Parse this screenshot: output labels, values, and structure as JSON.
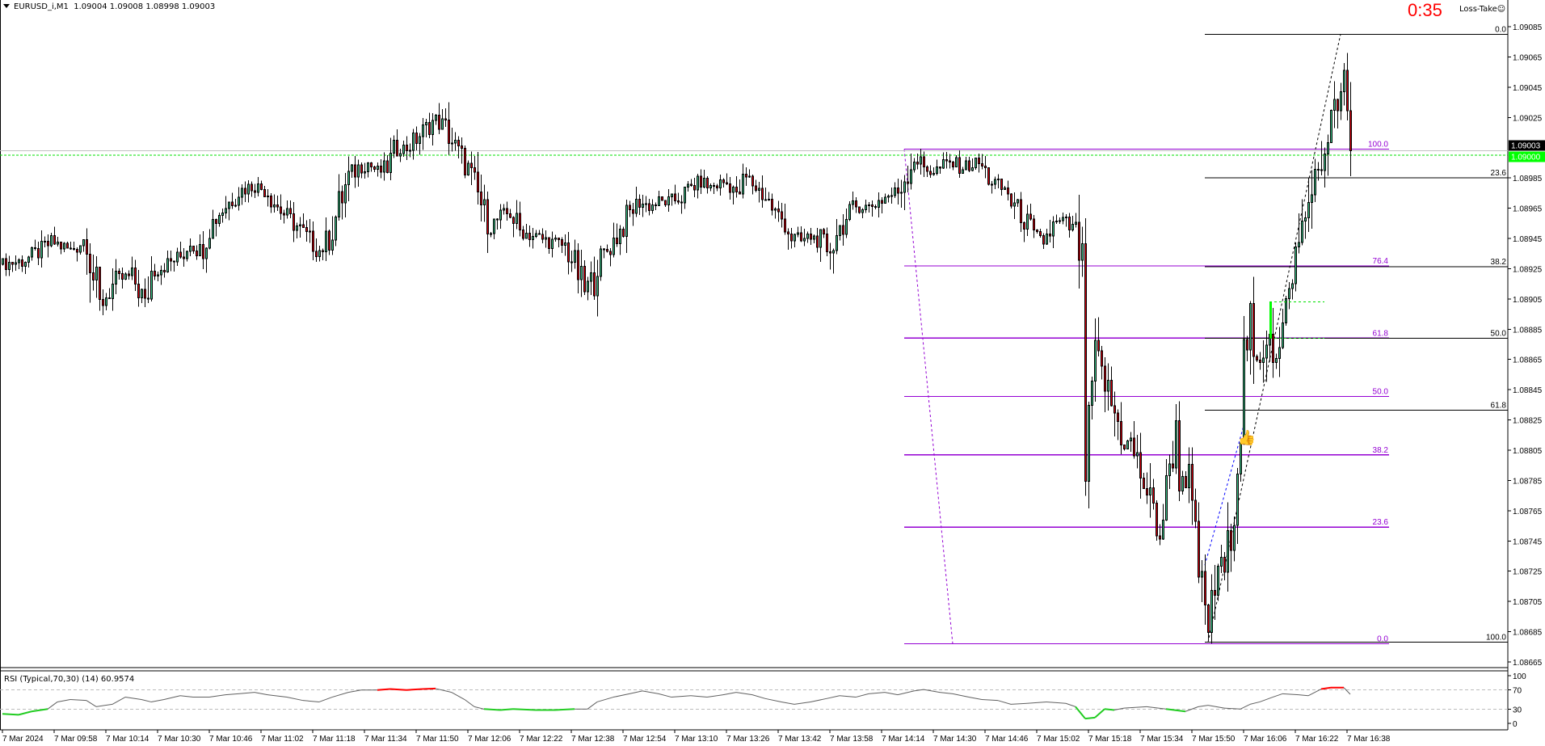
{
  "header": {
    "symbol": "EURUSD_i,M1",
    "ohlc": "1.09004 1.09008 1.08998 1.09003"
  },
  "widget": {
    "loss_take": "Loss-Take",
    "smiley_icon": "smiley-icon",
    "countdown": "0:35"
  },
  "rsi_label": "RSI (Typical,70,30) (14) 60.9574",
  "colors": {
    "bull": "#3cc68a",
    "bear": "#d9000d",
    "fib_purple": "#9400d3",
    "fib_black": "#000000",
    "bid_line": "#c0c0c0",
    "ask_line": "#00e000",
    "rsi_line": "#606060",
    "rsi_overbought": "#ff0000",
    "rsi_oversold": "#22cc22"
  },
  "chart_data": {
    "type": "candlestick",
    "price_ticks": [
      "1.09085",
      "1.09065",
      "1.09045",
      "1.09025",
      "1.08985",
      "1.08965",
      "1.08945",
      "1.08925",
      "1.08905",
      "1.08885",
      "1.08865",
      "1.08845",
      "1.08825",
      "1.08805",
      "1.08785",
      "1.08765",
      "1.08745",
      "1.08725",
      "1.08705",
      "1.08685",
      "1.08665"
    ],
    "price_range": [
      1.08655,
      1.091
    ],
    "time_labels": [
      "7 Mar 2024",
      "7 Mar 09:58",
      "7 Mar 10:14",
      "7 Mar 10:30",
      "7 Mar 10:46",
      "7 Mar 11:02",
      "7 Mar 11:18",
      "7 Mar 11:34",
      "7 Mar 11:50",
      "7 Mar 12:06",
      "7 Mar 12:22",
      "7 Mar 12:38",
      "7 Mar 12:54",
      "7 Mar 13:10",
      "7 Mar 13:26",
      "7 Mar 13:42",
      "7 Mar 13:58",
      "7 Mar 14:14",
      "7 Mar 14:30",
      "7 Mar 14:46",
      "7 Mar 15:02",
      "7 Mar 15:18",
      "7 Mar 15:34",
      "7 Mar 15:50",
      "7 Mar 16:06",
      "7 Mar 16:22",
      "7 Mar 16:38"
    ],
    "first_bar_time": "09:42",
    "bid": {
      "label": "1.09003",
      "price": 1.09003
    },
    "ask": {
      "label": "1.09000",
      "price": 1.09
    },
    "closes": [
      [
        "09:42",
        1.08928
      ],
      [
        "09:48",
        1.0893
      ],
      [
        "09:54",
        1.08937
      ],
      [
        "09:57",
        1.08943
      ],
      [
        "10:03",
        1.08937
      ],
      [
        "10:08",
        1.08946
      ],
      [
        "10:10",
        1.0892
      ],
      [
        "10:12",
        1.08901
      ],
      [
        "10:14",
        1.08907
      ],
      [
        "10:17",
        1.08917
      ],
      [
        "10:22",
        1.0892
      ],
      [
        "10:25",
        1.08907
      ],
      [
        "10:26",
        1.08901
      ],
      [
        "10:28",
        1.08923
      ],
      [
        "10:32",
        1.08927
      ],
      [
        "10:37",
        1.08933
      ],
      [
        "10:40",
        1.08943
      ],
      [
        "10:43",
        1.08937
      ],
      [
        "10:46",
        1.08953
      ],
      [
        "10:49",
        1.08962
      ],
      [
        "10:52",
        1.08969
      ],
      [
        "10:55",
        1.08976
      ],
      [
        "10:58",
        1.08979
      ],
      [
        "11:01",
        1.08979
      ],
      [
        "11:04",
        1.08976
      ],
      [
        "11:07",
        1.08966
      ],
      [
        "11:10",
        1.08959
      ],
      [
        "11:13",
        1.08953
      ],
      [
        "11:16",
        1.08946
      ],
      [
        "11:20",
        1.08937
      ],
      [
        "11:23",
        1.08946
      ],
      [
        "11:26",
        1.08966
      ],
      [
        "11:29",
        1.08985
      ],
      [
        "11:32",
        1.08992
      ],
      [
        "11:35",
        1.08995
      ],
      [
        "11:38",
        1.08989
      ],
      [
        "11:41",
        1.08992
      ],
      [
        "11:44",
        1.09005
      ],
      [
        "11:47",
        1.09005
      ],
      [
        "11:50",
        1.09011
      ],
      [
        "11:53",
        1.09018
      ],
      [
        "11:56",
        1.09024
      ],
      [
        "11:59",
        1.09018
      ],
      [
        "12:02",
        1.09005
      ],
      [
        "12:05",
        1.08995
      ],
      [
        "12:08",
        1.08979
      ],
      [
        "12:11",
        1.08962
      ],
      [
        "12:13",
        1.08953
      ],
      [
        "12:16",
        1.08959
      ],
      [
        "12:19",
        1.08962
      ],
      [
        "12:22",
        1.0895
      ],
      [
        "12:27",
        1.08946
      ],
      [
        "12:31",
        1.08943
      ],
      [
        "12:36",
        1.0894
      ],
      [
        "12:39",
        1.08927
      ],
      [
        "12:42",
        1.0891
      ],
      [
        "12:45",
        1.0892
      ],
      [
        "12:46",
        1.0893
      ],
      [
        "12:49",
        1.08937
      ],
      [
        "12:53",
        1.0895
      ],
      [
        "12:56",
        1.08962
      ],
      [
        "12:59",
        1.08969
      ],
      [
        "13:02",
        1.08966
      ],
      [
        "13:05",
        1.08969
      ],
      [
        "13:08",
        1.08969
      ],
      [
        "13:12",
        1.08972
      ],
      [
        "13:15",
        1.08979
      ],
      [
        "13:18",
        1.08982
      ],
      [
        "13:21",
        1.08979
      ],
      [
        "13:25",
        1.08982
      ],
      [
        "13:28",
        1.08979
      ],
      [
        "13:29",
        1.08972
      ],
      [
        "13:32",
        1.08985
      ],
      [
        "13:35",
        1.08979
      ],
      [
        "13:38",
        1.08972
      ],
      [
        "13:41",
        1.08962
      ],
      [
        "13:44",
        1.08956
      ],
      [
        "13:46",
        1.08946
      ],
      [
        "13:49",
        1.08943
      ],
      [
        "13:52",
        1.08946
      ],
      [
        "13:55",
        1.08943
      ],
      [
        "13:57",
        1.08933
      ],
      [
        "14:00",
        1.0895
      ],
      [
        "14:03",
        1.08956
      ],
      [
        "14:06",
        1.08966
      ],
      [
        "14:10",
        1.08966
      ],
      [
        "14:15",
        1.08972
      ],
      [
        "14:19",
        1.08976
      ],
      [
        "14:22",
        1.08989
      ],
      [
        "14:24",
        1.08998
      ],
      [
        "14:27",
        1.08992
      ],
      [
        "14:30",
        1.08989
      ],
      [
        "14:35",
        1.08995
      ],
      [
        "14:39",
        1.08992
      ],
      [
        "14:44",
        1.08995
      ],
      [
        "14:47",
        1.08985
      ],
      [
        "14:50",
        1.08979
      ],
      [
        "14:53",
        1.08976
      ],
      [
        "14:54",
        1.08969
      ],
      [
        "14:57",
        1.08962
      ],
      [
        "15:01",
        1.08946
      ],
      [
        "15:04",
        1.08943
      ],
      [
        "15:07",
        1.08953
      ],
      [
        "15:10",
        1.08956
      ],
      [
        "15:13",
        1.0895
      ],
      [
        "15:14",
        1.08946
      ],
      [
        "15:16",
        1.08927
      ],
      [
        "15:17",
        1.0879
      ],
      [
        "15:19",
        1.08849
      ],
      [
        "15:20",
        1.08868
      ],
      [
        "15:23",
        1.08849
      ],
      [
        "15:26",
        1.08829
      ],
      [
        "15:29",
        1.0881
      ],
      [
        "15:31",
        1.0881
      ],
      [
        "15:33",
        1.08796
      ],
      [
        "15:36",
        1.08777
      ],
      [
        "15:39",
        1.08757
      ],
      [
        "15:40",
        1.08748
      ],
      [
        "15:42",
        1.08777
      ],
      [
        "15:43",
        1.08796
      ],
      [
        "15:45",
        1.08816
      ],
      [
        "15:46",
        1.0879
      ],
      [
        "15:49",
        1.08783
      ],
      [
        "15:51",
        1.08744
      ],
      [
        "15:52",
        1.08725
      ],
      [
        "15:54",
        1.08699
      ],
      [
        "15:55",
        1.08686
      ],
      [
        "15:57",
        1.08712
      ],
      [
        "15:58",
        1.08731
      ],
      [
        "16:00",
        1.08725
      ],
      [
        "16:01",
        1.08738
      ],
      [
        "16:03",
        1.0877
      ],
      [
        "16:05",
        1.08822
      ],
      [
        "16:06",
        1.08868
      ],
      [
        "16:08",
        1.08888
      ],
      [
        "16:09",
        1.08862
      ],
      [
        "16:11",
        1.08862
      ],
      [
        "16:12",
        1.08875
      ],
      [
        "16:14",
        1.08888
      ],
      [
        "16:15",
        1.08871
      ],
      [
        "16:17",
        1.08868
      ],
      [
        "16:18",
        1.08888
      ],
      [
        "16:20",
        1.08904
      ],
      [
        "16:21",
        1.08927
      ],
      [
        "16:23",
        1.0894
      ],
      [
        "16:24",
        1.08953
      ],
      [
        "16:26",
        1.08966
      ],
      [
        "16:27",
        1.08989
      ],
      [
        "16:29",
        1.08985
      ],
      [
        "16:30",
        1.08992
      ],
      [
        "16:32",
        1.09018
      ],
      [
        "16:33",
        1.09024
      ],
      [
        "16:35",
        1.09034
      ],
      [
        "16:37",
        1.09044
      ],
      [
        "16:38",
        1.09021
      ],
      [
        "16:39",
        1.09003
      ]
    ],
    "fib_purple": {
      "high": 1.09004,
      "low": 1.08677,
      "start": "14:21",
      "end": "16:51",
      "levels": [
        "100.0",
        "76.4",
        "61.8",
        "50.0",
        "38.2",
        "23.6",
        "0.0"
      ],
      "trend": [
        [
          "14:21",
          1.09004
        ],
        [
          "14:36",
          1.08677
        ]
      ]
    },
    "fib_black": {
      "high": 1.0908,
      "low": 1.08678,
      "start": "15:54",
      "levels": [
        "0.0",
        "23.6",
        "38.2",
        "50.0",
        "61.8",
        "100.0"
      ],
      "trend": [
        [
          "15:55",
          1.08678
        ],
        [
          "16:36",
          1.0908
        ]
      ]
    },
    "blue_trend": [
      [
        "15:54",
        1.08729
      ],
      [
        "16:06",
        1.08821
      ]
    ],
    "green_marker": {
      "time": "16:14",
      "top": 1.08903,
      "bottom": 1.08879,
      "end": "16:31"
    },
    "thumbs_up_icon": {
      "time": "16:07",
      "price": 1.0881
    },
    "rsi": {
      "ticks": [
        "100",
        "70",
        "30",
        "0"
      ],
      "levels": [
        70,
        30
      ],
      "values": [
        [
          "09:42",
          20
        ],
        [
          "09:47",
          18
        ],
        [
          "09:51",
          25
        ],
        [
          "09:56",
          30
        ],
        [
          "09:59",
          45
        ],
        [
          "10:03",
          50
        ],
        [
          "10:08",
          48
        ],
        [
          "10:11",
          35
        ],
        [
          "10:16",
          40
        ],
        [
          "10:20",
          55
        ],
        [
          "10:25",
          50
        ],
        [
          "10:28",
          45
        ],
        [
          "10:32",
          50
        ],
        [
          "10:37",
          58
        ],
        [
          "10:41",
          55
        ],
        [
          "10:46",
          55
        ],
        [
          "10:51",
          60
        ],
        [
          "10:55",
          62
        ],
        [
          "11:00",
          65
        ],
        [
          "11:04",
          60
        ],
        [
          "11:10",
          55
        ],
        [
          "11:15",
          48
        ],
        [
          "11:20",
          45
        ],
        [
          "11:24",
          55
        ],
        [
          "11:29",
          65
        ],
        [
          "11:33",
          70
        ],
        [
          "11:38",
          70
        ],
        [
          "11:42",
          72
        ],
        [
          "11:47",
          70
        ],
        [
          "11:52",
          72
        ],
        [
          "11:56",
          73
        ],
        [
          "12:01",
          65
        ],
        [
          "12:05",
          50
        ],
        [
          "12:08",
          35
        ],
        [
          "12:11",
          30
        ],
        [
          "12:16",
          28
        ],
        [
          "12:20",
          30
        ],
        [
          "12:27",
          28
        ],
        [
          "12:33",
          28
        ],
        [
          "12:39",
          30
        ],
        [
          "12:43",
          30
        ],
        [
          "12:46",
          45
        ],
        [
          "12:51",
          55
        ],
        [
          "12:56",
          62
        ],
        [
          "13:00",
          68
        ],
        [
          "13:05",
          62
        ],
        [
          "13:09",
          55
        ],
        [
          "13:15",
          58
        ],
        [
          "13:20",
          55
        ],
        [
          "13:25",
          60
        ],
        [
          "13:29",
          65
        ],
        [
          "13:34",
          60
        ],
        [
          "13:38",
          52
        ],
        [
          "13:43",
          45
        ],
        [
          "13:47",
          40
        ],
        [
          "13:52",
          45
        ],
        [
          "13:57",
          52
        ],
        [
          "14:01",
          58
        ],
        [
          "14:06",
          55
        ],
        [
          "14:10",
          62
        ],
        [
          "14:15",
          65
        ],
        [
          "14:19",
          60
        ],
        [
          "14:24",
          68
        ],
        [
          "14:27",
          71
        ],
        [
          "14:32",
          65
        ],
        [
          "14:36",
          62
        ],
        [
          "14:41",
          55
        ],
        [
          "14:45",
          50
        ],
        [
          "14:50",
          48
        ],
        [
          "14:54",
          40
        ],
        [
          "14:59",
          42
        ],
        [
          "15:05",
          45
        ],
        [
          "15:11",
          42
        ],
        [
          "15:14",
          35
        ],
        [
          "15:17",
          10
        ],
        [
          "15:20",
          12
        ],
        [
          "15:23",
          30
        ],
        [
          "15:26",
          28
        ],
        [
          "15:29",
          32
        ],
        [
          "15:36",
          35
        ],
        [
          "15:42",
          30
        ],
        [
          "15:48",
          25
        ],
        [
          "15:52",
          35
        ],
        [
          "15:55",
          38
        ],
        [
          "16:00",
          32
        ],
        [
          "16:05",
          30
        ],
        [
          "16:08",
          40
        ],
        [
          "16:11",
          45
        ],
        [
          "16:15",
          55
        ],
        [
          "16:18",
          62
        ],
        [
          "16:23",
          60
        ],
        [
          "16:26",
          58
        ],
        [
          "16:30",
          72
        ],
        [
          "16:33",
          75
        ],
        [
          "16:37",
          75
        ],
        [
          "16:39",
          61
        ]
      ]
    }
  }
}
